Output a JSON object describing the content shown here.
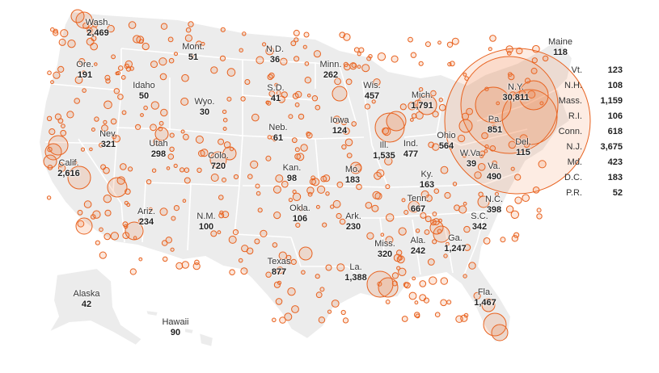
{
  "colors": {
    "land": "#ececec",
    "bubble_stroke": "#e8621f",
    "background": "#ffffff"
  },
  "states": [
    {
      "name": "Wash.",
      "value": "2,469"
    },
    {
      "name": "Mont.",
      "value": "51"
    },
    {
      "name": "N.D.",
      "value": "36"
    },
    {
      "name": "Minn.",
      "value": "262"
    },
    {
      "name": "Ore.",
      "value": "191"
    },
    {
      "name": "Idaho",
      "value": "50"
    },
    {
      "name": "Wyo.",
      "value": "30"
    },
    {
      "name": "S.D.",
      "value": "41"
    },
    {
      "name": "Wis.",
      "value": "457"
    },
    {
      "name": "Mich.",
      "value": "1,791"
    },
    {
      "name": "N.Y.",
      "value": "30,811"
    },
    {
      "name": "Maine",
      "value": "118"
    },
    {
      "name": "Nev.",
      "value": "321"
    },
    {
      "name": "Utah",
      "value": "298"
    },
    {
      "name": "Neb.",
      "value": "61"
    },
    {
      "name": "Iowa",
      "value": "124"
    },
    {
      "name": "Ill.",
      "value": "1,535"
    },
    {
      "name": "Ind.",
      "value": "477"
    },
    {
      "name": "Ohio",
      "value": "564"
    },
    {
      "name": "Pa.",
      "value": "851"
    },
    {
      "name": "Del.",
      "value": "115"
    },
    {
      "name": "Calif.",
      "value": "2,616"
    },
    {
      "name": "Colo.",
      "value": "720"
    },
    {
      "name": "Kan.",
      "value": "98"
    },
    {
      "name": "Mo.",
      "value": "183"
    },
    {
      "name": "Ky.",
      "value": "163"
    },
    {
      "name": "W.Va.",
      "value": "39"
    },
    {
      "name": "Va.",
      "value": "490"
    },
    {
      "name": "Tenn.",
      "value": "667"
    },
    {
      "name": "N.C.",
      "value": "398"
    },
    {
      "name": "Ariz.",
      "value": "234"
    },
    {
      "name": "N.M.",
      "value": "100"
    },
    {
      "name": "Okla.",
      "value": "106"
    },
    {
      "name": "Ark.",
      "value": "230"
    },
    {
      "name": "S.C.",
      "value": "342"
    },
    {
      "name": "Miss.",
      "value": "320"
    },
    {
      "name": "Ala.",
      "value": "242"
    },
    {
      "name": "Ga.",
      "value": "1,247"
    },
    {
      "name": "Texas",
      "value": "877"
    },
    {
      "name": "La.",
      "value": "1,388"
    },
    {
      "name": "Fla.",
      "value": "1,467"
    },
    {
      "name": "Alaska",
      "value": "42"
    },
    {
      "name": "Hawaii",
      "value": "90"
    }
  ],
  "side_list": [
    {
      "name": "Vt.",
      "value": "123"
    },
    {
      "name": "N.H.",
      "value": "108"
    },
    {
      "name": "Mass.",
      "value": "1,159"
    },
    {
      "name": "R.I.",
      "value": "106"
    },
    {
      "name": "Conn.",
      "value": "618"
    },
    {
      "name": "N.J.",
      "value": "3,675"
    },
    {
      "name": "Md.",
      "value": "423"
    },
    {
      "name": "D.C.",
      "value": "183"
    },
    {
      "name": "P.R.",
      "value": "52"
    }
  ]
}
